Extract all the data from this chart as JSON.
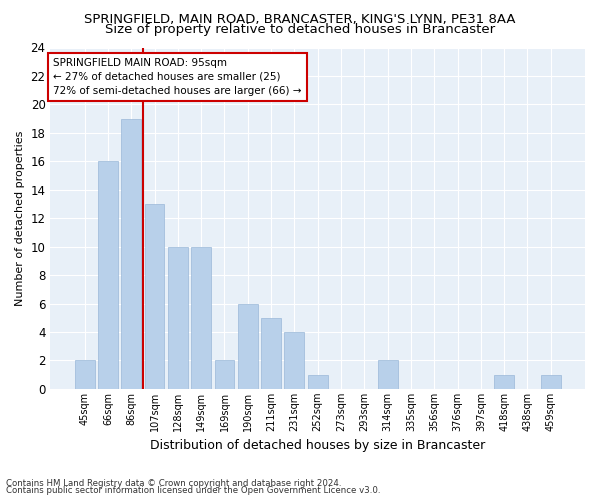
{
  "title1": "SPRINGFIELD, MAIN ROAD, BRANCASTER, KING'S LYNN, PE31 8AA",
  "title2": "Size of property relative to detached houses in Brancaster",
  "xlabel": "Distribution of detached houses by size in Brancaster",
  "ylabel": "Number of detached properties",
  "categories": [
    "45sqm",
    "66sqm",
    "86sqm",
    "107sqm",
    "128sqm",
    "149sqm",
    "169sqm",
    "190sqm",
    "211sqm",
    "231sqm",
    "252sqm",
    "273sqm",
    "293sqm",
    "314sqm",
    "335sqm",
    "356sqm",
    "376sqm",
    "397sqm",
    "418sqm",
    "438sqm",
    "459sqm"
  ],
  "values": [
    2,
    16,
    19,
    13,
    10,
    10,
    2,
    6,
    5,
    4,
    1,
    0,
    0,
    2,
    0,
    0,
    0,
    0,
    1,
    0,
    1
  ],
  "bar_color": "#b8d0ea",
  "bar_edge_color": "#9ab8d8",
  "vline_x_idx": 2,
  "vline_color": "#cc0000",
  "ylim": [
    0,
    24
  ],
  "yticks": [
    0,
    2,
    4,
    6,
    8,
    10,
    12,
    14,
    16,
    18,
    20,
    22,
    24
  ],
  "annotation_line1": "SPRINGFIELD MAIN ROAD: 95sqm",
  "annotation_line2": "← 27% of detached houses are smaller (25)",
  "annotation_line3": "72% of semi-detached houses are larger (66) →",
  "annotation_box_color": "#ffffff",
  "annotation_box_edge": "#cc0000",
  "footer1": "Contains HM Land Registry data © Crown copyright and database right 2024.",
  "footer2": "Contains public sector information licensed under the Open Government Licence v3.0.",
  "bg_color": "#e8f0f8",
  "grid_color": "#ffffff",
  "title1_fontsize": 9.5,
  "title2_fontsize": 9.5
}
